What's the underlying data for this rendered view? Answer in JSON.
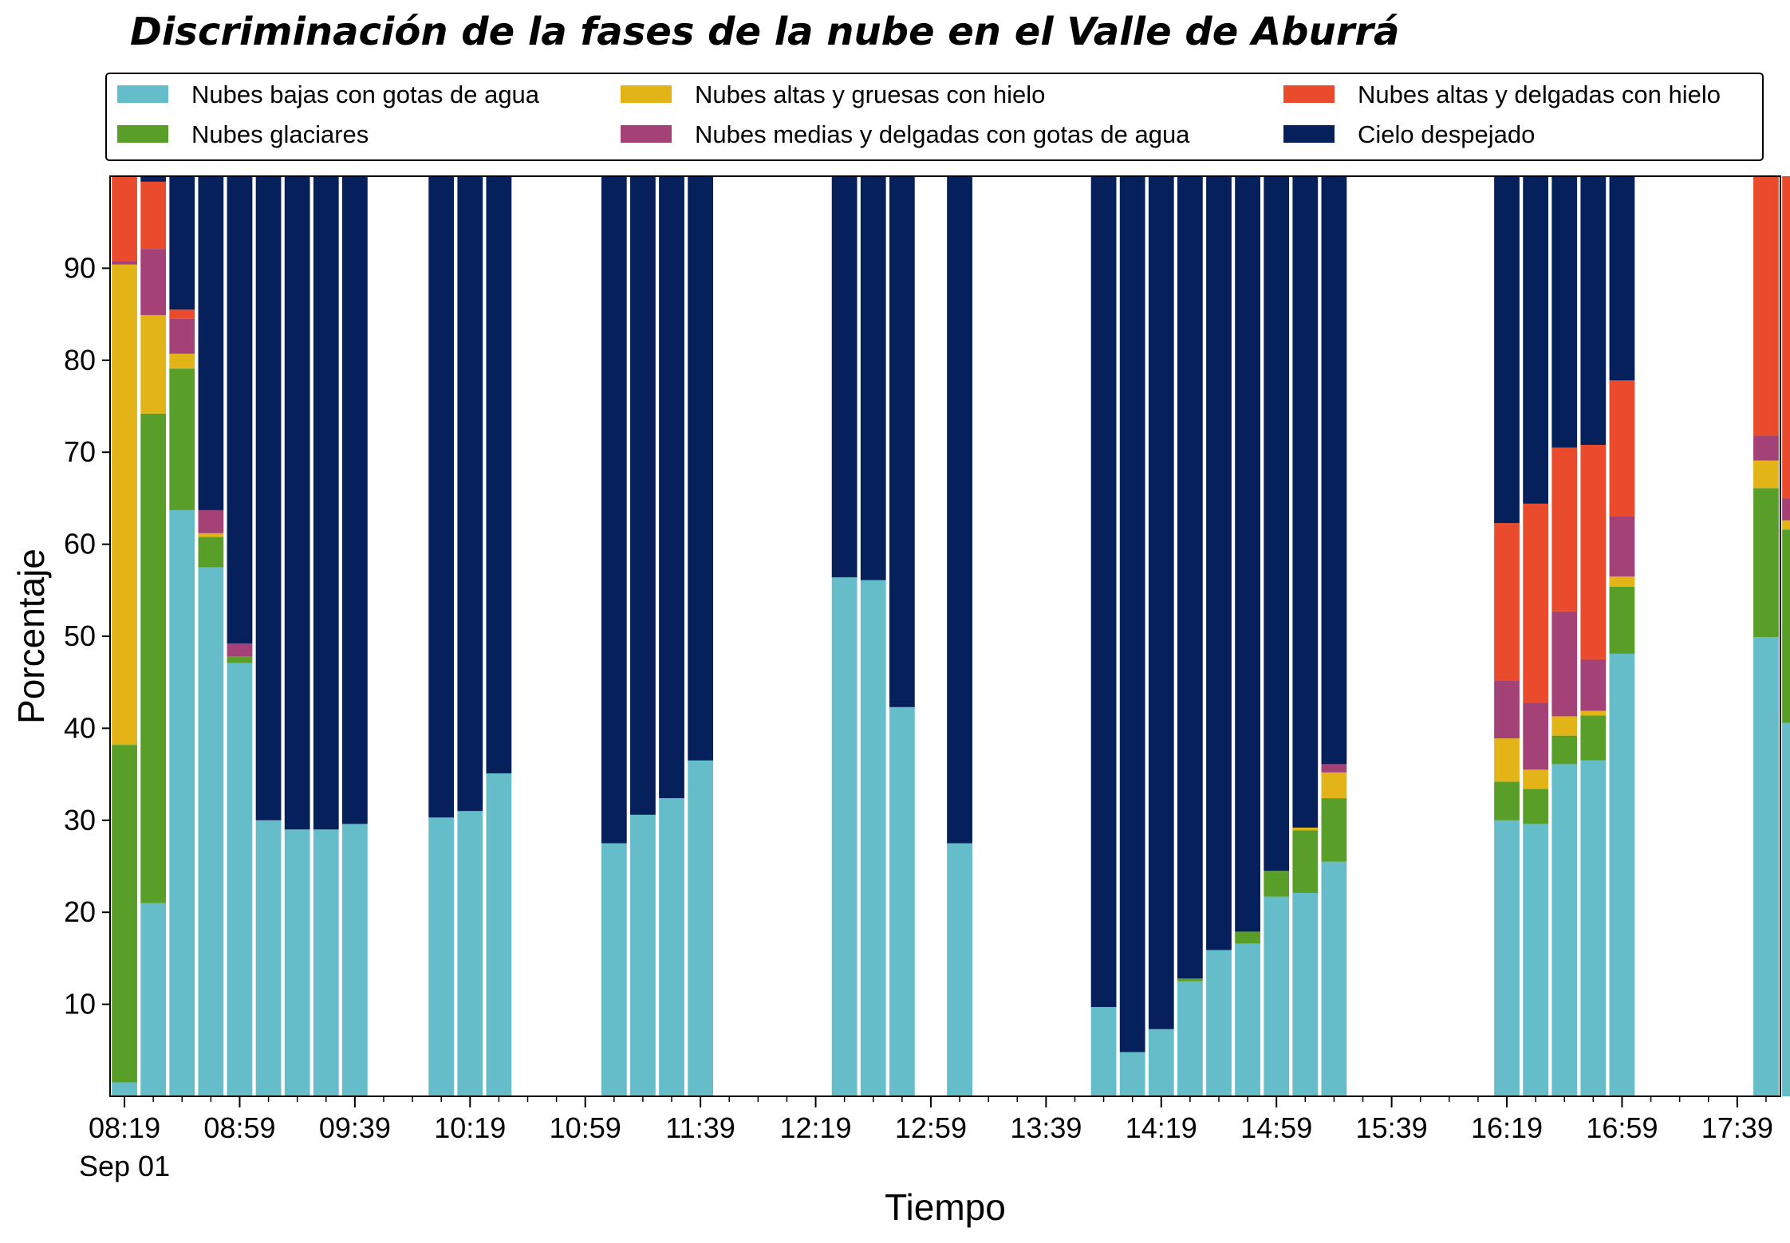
{
  "chart_data": {
    "type": "bar",
    "stacked": true,
    "title": "Discriminación de la fases de la nube en el Valle de Aburrá",
    "xlabel": "Tiempo",
    "ylabel": "Porcentaje",
    "ylim": [
      0,
      100
    ],
    "yticks": [
      10,
      20,
      30,
      40,
      50,
      60,
      70,
      80,
      90
    ],
    "xticks": [
      {
        "label": "08:19",
        "sub": "Sep 01",
        "time": "08:19"
      },
      {
        "label": "08:59",
        "time": "08:59"
      },
      {
        "label": "09:39",
        "time": "09:39"
      },
      {
        "label": "10:19",
        "time": "10:19"
      },
      {
        "label": "10:59",
        "time": "10:59"
      },
      {
        "label": "11:39",
        "time": "11:39"
      },
      {
        "label": "12:19",
        "time": "12:19"
      },
      {
        "label": "12:59",
        "time": "12:59"
      },
      {
        "label": "13:39",
        "time": "13:39"
      },
      {
        "label": "14:19",
        "time": "14:19"
      },
      {
        "label": "14:59",
        "time": "14:59"
      },
      {
        "label": "15:39",
        "time": "15:39"
      },
      {
        "label": "16:19",
        "time": "16:19"
      },
      {
        "label": "16:59",
        "time": "16:59"
      },
      {
        "label": "17:39",
        "time": "17:39"
      }
    ],
    "xrange": [
      "08:14",
      "17:54"
    ],
    "bar_interval_minutes": 10,
    "legend_position": "top",
    "grid": false,
    "categories": [
      "08:19",
      "08:29",
      "08:39",
      "08:49",
      "08:59",
      "09:09",
      "09:19",
      "09:29",
      "09:39",
      "10:09",
      "10:19",
      "10:29",
      "11:09",
      "11:19",
      "11:29",
      "11:39",
      "12:29",
      "12:39",
      "12:49",
      "13:09",
      "13:59",
      "14:09",
      "14:19",
      "14:29",
      "14:39",
      "14:49",
      "14:59",
      "15:09",
      "15:19",
      "16:19",
      "16:29",
      "16:39",
      "16:49",
      "16:59",
      "17:49",
      "17:59"
    ],
    "series": [
      {
        "name": "Nubes bajas con gotas de agua",
        "color": "#64bdc8",
        "values": [
          1.5,
          21,
          63.7,
          57.5,
          47.1,
          30,
          29,
          29,
          29.6,
          30.3,
          31,
          35.1,
          27.5,
          30.6,
          32.4,
          36.5,
          56.4,
          56.1,
          42.3,
          27.5,
          9.7,
          4.8,
          7.3,
          12.5,
          15.9,
          16.6,
          21.7,
          22.1,
          25.5,
          30,
          29.6,
          36.1,
          36.5,
          48.1,
          49.9,
          40.6
        ]
      },
      {
        "name": "Nubes glaciares",
        "color": "#5a9e2a",
        "values": [
          36.7,
          53.2,
          15.4,
          3.3,
          0.7,
          0,
          0,
          0,
          0,
          0,
          0,
          0,
          0,
          0,
          0,
          0,
          0,
          0,
          0,
          0,
          0,
          0,
          0,
          0.3,
          0,
          1.3,
          2.8,
          6.8,
          6.9,
          4.2,
          3.8,
          3.1,
          4.9,
          7.3,
          16.2,
          21
        ]
      },
      {
        "name": "Nubes altas y gruesas con hielo",
        "color": "#e2b418",
        "values": [
          52.2,
          10.7,
          1.6,
          0.4,
          0,
          0,
          0,
          0,
          0,
          0,
          0,
          0,
          0,
          0,
          0,
          0,
          0,
          0,
          0,
          0,
          0,
          0,
          0,
          0,
          0,
          0,
          0,
          0.3,
          2.8,
          4.7,
          2.1,
          2.1,
          0.5,
          1.1,
          3,
          1
        ]
      },
      {
        "name": "Nubes medias y delgadas con gotas de agua",
        "color": "#a44277",
        "values": [
          0.4,
          7.2,
          3.8,
          2.5,
          1.4,
          0,
          0,
          0,
          0,
          0,
          0,
          0,
          0,
          0,
          0,
          0,
          0,
          0,
          0,
          0,
          0,
          0,
          0,
          0,
          0,
          0,
          0,
          0,
          0.9,
          6.3,
          7.3,
          11.4,
          5.6,
          6.5,
          2.7,
          2.4
        ]
      },
      {
        "name": "Nubes altas y delgadas con hielo",
        "color": "#ea4b2c",
        "values": [
          9.2,
          7.3,
          1,
          0,
          0,
          0,
          0,
          0,
          0,
          0,
          0,
          0,
          0,
          0,
          0,
          0,
          0,
          0,
          0,
          0,
          0,
          0,
          0,
          0,
          0,
          0,
          0,
          0,
          0,
          17.1,
          21.6,
          17.8,
          23.3,
          14.8,
          28.2,
          35
        ]
      },
      {
        "name": "Cielo despejado",
        "color": "#06205b",
        "values": [
          0,
          0.6,
          14.5,
          36.3,
          50.8,
          70,
          71,
          71,
          70.4,
          69.7,
          69,
          64.9,
          72.5,
          69.4,
          67.6,
          63.5,
          43.6,
          43.9,
          57.7,
          72.5,
          90.3,
          95.2,
          92.7,
          87.2,
          84.1,
          82.1,
          75.5,
          70.8,
          63.9,
          37.7,
          35.6,
          29.5,
          29.2,
          22.2,
          0,
          0
        ]
      }
    ]
  }
}
